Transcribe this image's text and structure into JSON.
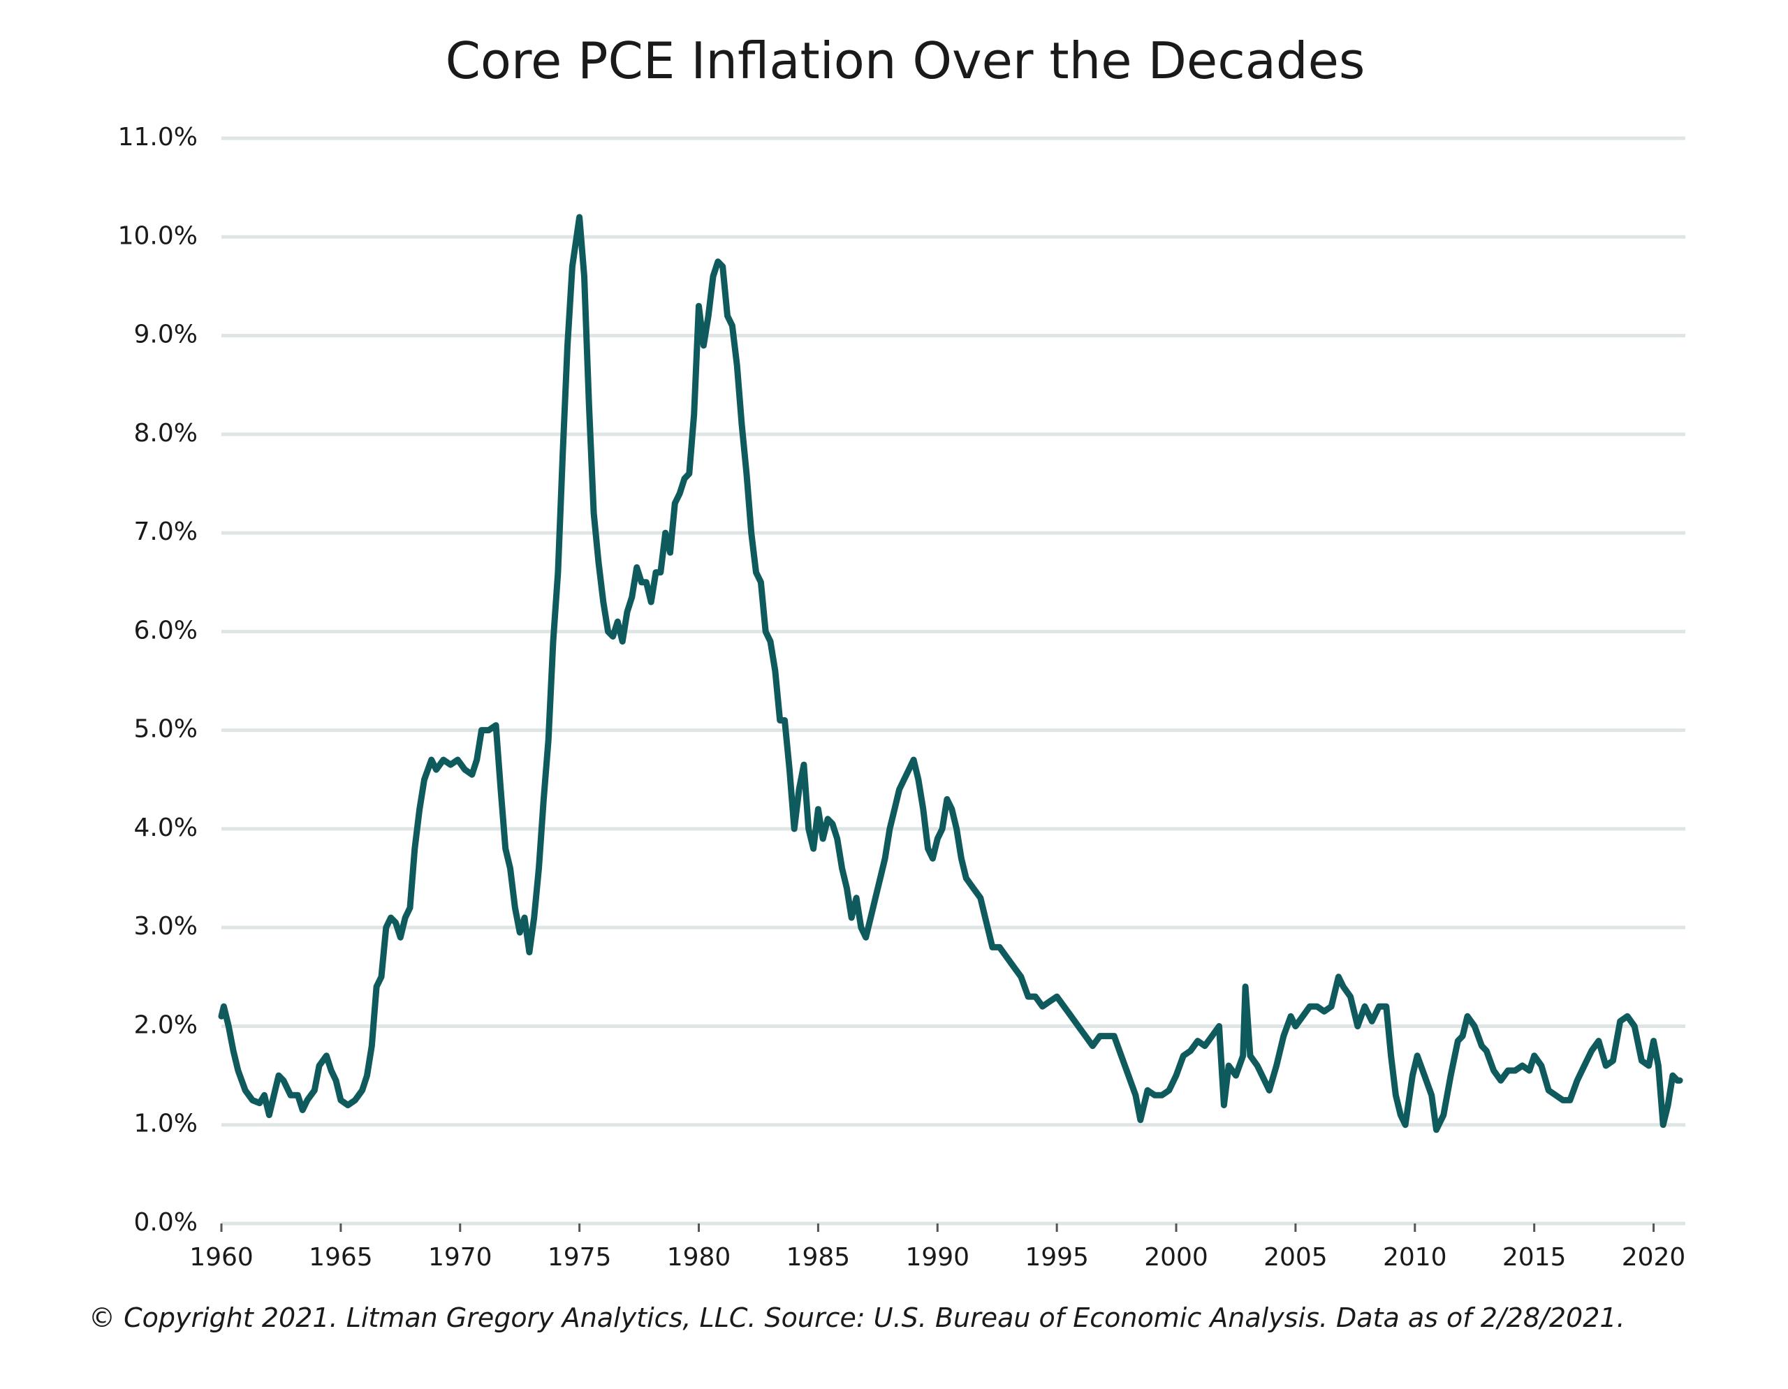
{
  "chart_data": {
    "type": "line",
    "title": "Core PCE Inflation Over the Decades",
    "footnote": "© Copyright 2021. Litman Gregory Analytics, LLC. Source: U.S. Bureau of Economic Analysis. Data as of 2/28/2021.",
    "xlim": [
      1960,
      2021.33
    ],
    "xticks": [
      1960,
      1965,
      1970,
      1975,
      1980,
      1985,
      1990,
      1995,
      2000,
      2005,
      2010,
      2015,
      2020
    ],
    "ylim": [
      0,
      11
    ],
    "yticks": [
      {
        "value": 0,
        "label": "0.0%"
      },
      {
        "value": 1,
        "label": "1.0%"
      },
      {
        "value": 2,
        "label": "2.0%"
      },
      {
        "value": 3,
        "label": "3.0%"
      },
      {
        "value": 4,
        "label": "4.0%"
      },
      {
        "value": 5,
        "label": "5.0%"
      },
      {
        "value": 6,
        "label": "6.0%"
      },
      {
        "value": 7,
        "label": "7.0%"
      },
      {
        "value": 8,
        "label": "8.0%"
      },
      {
        "value": 9,
        "label": "9.0%"
      },
      {
        "value": 10,
        "label": "10.0%"
      },
      {
        "value": 11,
        "label": "11.0%"
      }
    ],
    "grid": true,
    "x": [
      1960,
      1960.1,
      1960.3,
      1960.5,
      1960.7,
      1961,
      1961.3,
      1961.6,
      1961.8,
      1962,
      1962.2,
      1962.4,
      1962.6,
      1962.9,
      1963.2,
      1963.4,
      1963.6,
      1963.9,
      1964.1,
      1964.4,
      1964.6,
      1964.8,
      1965,
      1965.3,
      1965.6,
      1965.9,
      1966.1,
      1966.3,
      1966.5,
      1966.7,
      1966.9,
      1967.1,
      1967.3,
      1967.5,
      1967.7,
      1967.9,
      1968.1,
      1968.3,
      1968.5,
      1968.8,
      1969,
      1969.3,
      1969.6,
      1969.9,
      1970.2,
      1970.5,
      1970.7,
      1970.9,
      1971.2,
      1971.5,
      1971.7,
      1971.9,
      1972.1,
      1972.3,
      1972.5,
      1972.7,
      1972.9,
      1973.1,
      1973.3,
      1973.5,
      1973.7,
      1973.9,
      1974.1,
      1974.3,
      1974.5,
      1974.7,
      1975,
      1975.2,
      1975.4,
      1975.6,
      1975.8,
      1976,
      1976.2,
      1976.4,
      1976.6,
      1976.8,
      1977,
      1977.2,
      1977.4,
      1977.6,
      1977.8,
      1978,
      1978.2,
      1978.4,
      1978.6,
      1978.8,
      1979,
      1979.2,
      1979.4,
      1979.6,
      1979.8,
      1980,
      1980.2,
      1980.4,
      1980.6,
      1980.8,
      1981,
      1981.2,
      1981.4,
      1981.6,
      1981.8,
      1982,
      1982.2,
      1982.4,
      1982.6,
      1982.8,
      1983,
      1983.2,
      1983.4,
      1983.6,
      1983.8,
      1984,
      1984.2,
      1984.4,
      1984.6,
      1984.8,
      1985,
      1985.2,
      1985.4,
      1985.6,
      1985.8,
      1986,
      1986.2,
      1986.4,
      1986.6,
      1986.8,
      1987,
      1987.2,
      1987.4,
      1987.6,
      1987.8,
      1988,
      1988.2,
      1988.4,
      1988.6,
      1988.8,
      1989,
      1989.2,
      1989.4,
      1989.6,
      1989.8,
      1990,
      1990.2,
      1990.4,
      1990.6,
      1990.8,
      1991,
      1991.2,
      1991.5,
      1991.8,
      1992,
      1992.3,
      1992.6,
      1992.9,
      1993.2,
      1993.5,
      1993.8,
      1994.1,
      1994.4,
      1994.7,
      1995,
      1995.3,
      1995.6,
      1995.9,
      1996.2,
      1996.5,
      1996.8,
      1997.1,
      1997.4,
      1997.7,
      1998,
      1998.3,
      1998.5,
      1998.8,
      1999.1,
      1999.4,
      1999.7,
      2000,
      2000.3,
      2000.6,
      2000.9,
      2001.2,
      2001.5,
      2001.8,
      2002,
      2002.2,
      2002.5,
      2002.8,
      2002.9,
      2003.1,
      2003.4,
      2003.6,
      2003.9,
      2004.2,
      2004.5,
      2004.8,
      2005,
      2005.3,
      2005.6,
      2005.9,
      2006.2,
      2006.5,
      2006.8,
      2007,
      2007.3,
      2007.6,
      2007.9,
      2008.2,
      2008.5,
      2008.8,
      2009,
      2009.2,
      2009.4,
      2009.6,
      2009.9,
      2010.1,
      2010.4,
      2010.7,
      2010.9,
      2011.2,
      2011.5,
      2011.8,
      2012,
      2012.2,
      2012.5,
      2012.8,
      2013,
      2013.3,
      2013.6,
      2013.9,
      2014.2,
      2014.5,
      2014.8,
      2015,
      2015.3,
      2015.6,
      2015.9,
      2016.2,
      2016.5,
      2016.8,
      2017.1,
      2017.4,
      2017.7,
      2018,
      2018.3,
      2018.6,
      2018.9,
      2019.2,
      2019.5,
      2019.8,
      2020,
      2020.2,
      2020.4,
      2020.6,
      2020.8,
      2021,
      2021.1
    ],
    "series": [
      {
        "color": "#0e5a5c",
        "values": [
          2.1,
          2.2,
          2.0,
          1.75,
          1.55,
          1.35,
          1.25,
          1.22,
          1.3,
          1.1,
          1.3,
          1.5,
          1.45,
          1.3,
          1.3,
          1.15,
          1.25,
          1.35,
          1.6,
          1.7,
          1.55,
          1.45,
          1.25,
          1.2,
          1.25,
          1.35,
          1.5,
          1.8,
          2.4,
          2.5,
          3.0,
          3.1,
          3.05,
          2.9,
          3.1,
          3.2,
          3.8,
          4.2,
          4.5,
          4.7,
          4.6,
          4.7,
          4.65,
          4.7,
          4.6,
          4.55,
          4.7,
          5.0,
          5.0,
          5.05,
          4.4,
          3.8,
          3.6,
          3.2,
          2.95,
          3.1,
          2.75,
          3.1,
          3.6,
          4.3,
          4.9,
          5.9,
          6.6,
          7.8,
          8.9,
          9.7,
          10.2,
          9.6,
          8.3,
          7.2,
          6.7,
          6.3,
          6.0,
          5.95,
          6.1,
          5.9,
          6.2,
          6.35,
          6.65,
          6.5,
          6.5,
          6.3,
          6.6,
          6.6,
          7.0,
          6.8,
          7.3,
          7.4,
          7.55,
          7.6,
          8.2,
          9.3,
          8.9,
          9.2,
          9.6,
          9.75,
          9.7,
          9.2,
          9.1,
          8.7,
          8.1,
          7.6,
          7.0,
          6.6,
          6.5,
          6.0,
          5.9,
          5.6,
          5.1,
          5.1,
          4.6,
          4.0,
          4.4,
          4.65,
          4.0,
          3.8,
          4.2,
          3.9,
          4.1,
          4.05,
          3.9,
          3.6,
          3.4,
          3.1,
          3.3,
          3.0,
          2.9,
          3.1,
          3.3,
          3.5,
          3.7,
          4.0,
          4.2,
          4.4,
          4.5,
          4.6,
          4.7,
          4.5,
          4.2,
          3.8,
          3.7,
          3.9,
          4.0,
          4.3,
          4.2,
          4.0,
          3.7,
          3.5,
          3.4,
          3.3,
          3.1,
          2.8,
          2.8,
          2.7,
          2.6,
          2.5,
          2.3,
          2.3,
          2.2,
          2.25,
          2.3,
          2.2,
          2.1,
          2.0,
          1.9,
          1.8,
          1.9,
          1.9,
          1.9,
          1.7,
          1.5,
          1.3,
          1.05,
          1.35,
          1.3,
          1.3,
          1.35,
          1.5,
          1.7,
          1.75,
          1.85,
          1.8,
          1.9,
          2.0,
          1.2,
          1.6,
          1.5,
          1.7,
          2.4,
          1.7,
          1.6,
          1.5,
          1.35,
          1.6,
          1.9,
          2.1,
          2.0,
          2.1,
          2.2,
          2.2,
          2.15,
          2.2,
          2.5,
          2.4,
          2.3,
          2.0,
          2.2,
          2.05,
          2.2,
          2.2,
          1.7,
          1.3,
          1.1,
          1.0,
          1.5,
          1.7,
          1.5,
          1.3,
          0.95,
          1.1,
          1.5,
          1.85,
          1.9,
          2.1,
          2.0,
          1.8,
          1.75,
          1.55,
          1.45,
          1.55,
          1.55,
          1.6,
          1.55,
          1.7,
          1.6,
          1.35,
          1.3,
          1.25,
          1.25,
          1.45,
          1.6,
          1.75,
          1.85,
          1.6,
          1.65,
          2.05,
          2.1,
          2.0,
          1.65,
          1.6,
          1.85,
          1.6,
          1.0,
          1.2,
          1.5,
          1.45,
          1.45
        ]
      }
    ]
  }
}
